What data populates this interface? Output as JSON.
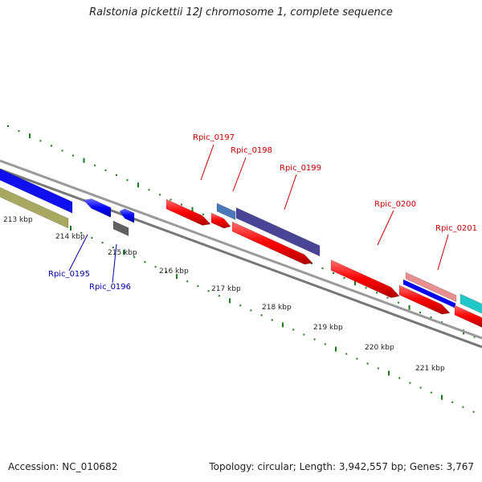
{
  "title": "Ralstonia pickettii 12J chromosome 1, complete sequence",
  "footer": {
    "accession": "Accession: NC_010682",
    "summary": "Topology: circular; Length: 3,942,557 bp; Genes: 3,767"
  },
  "colors": {
    "forward_gene": "#ff0000",
    "reverse_gene": "#0000ff",
    "backbone": "#888888",
    "tick": "#1a7a1a",
    "label_forward": "#cc0000",
    "label_reverse": "#0000aa"
  },
  "kbp_labels": [
    "213 kbp",
    "214 kbp",
    "215 kbp",
    "216 kbp",
    "217 kbp",
    "218 kbp",
    "219 kbp",
    "220 kbp",
    "221 kbp"
  ],
  "gene_labels": [
    "Rpic_0195",
    "Rpic_0196",
    "Rpic_0197",
    "Rpic_0198",
    "Rpic_0199",
    "Rpic_0200",
    "Rpic_0201"
  ]
}
